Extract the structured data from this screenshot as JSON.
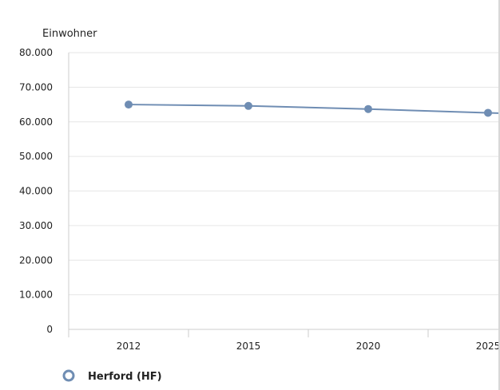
{
  "chart_data": {
    "type": "line",
    "ylabel": "Einwohner",
    "xlabel": "",
    "title": "",
    "categories": [
      "2012",
      "2015",
      "2020",
      "2025"
    ],
    "series": [
      {
        "name": "Herford (HF)",
        "color": "#6f8db3",
        "values": [
          65000,
          64600,
          63700,
          62600
        ]
      }
    ],
    "ylim": [
      0,
      80000
    ],
    "yticks": [
      0,
      10000,
      20000,
      30000,
      40000,
      50000,
      60000,
      70000,
      80000
    ],
    "ytick_labels": [
      "0",
      "10.000",
      "20.000",
      "30.000",
      "40.000",
      "50.000",
      "60.000",
      "70.000",
      "80.000"
    ],
    "grid": true,
    "legend_position": "bottom-left",
    "line_continues_right": true
  },
  "legend": {
    "label": "Herford (HF)"
  }
}
